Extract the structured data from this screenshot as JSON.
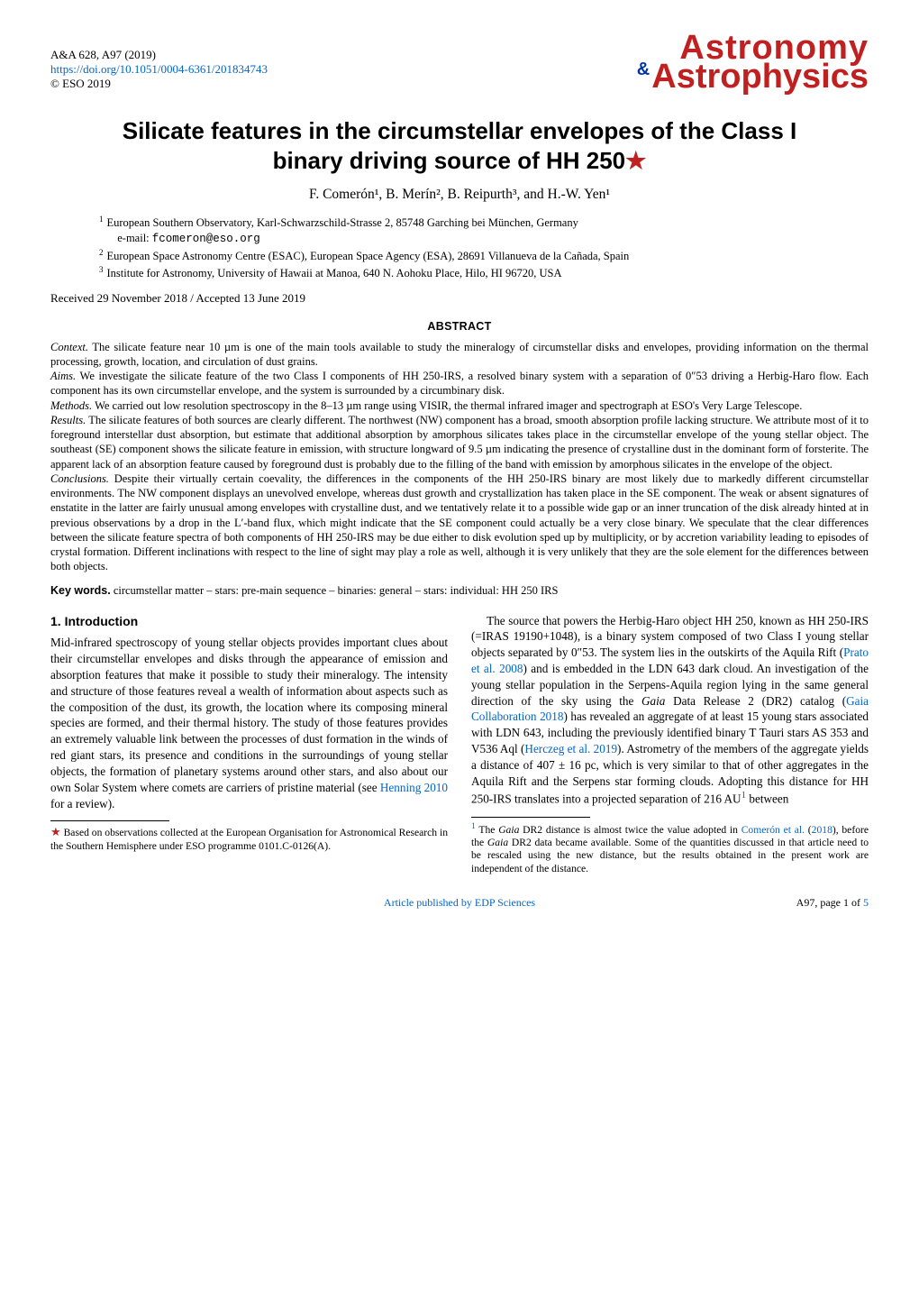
{
  "header": {
    "journal_ref": "A&A 628, A97 (2019)",
    "doi_text": "https://doi.org/10.1051/0004-6361/201834743",
    "copyright": "© ESO 2019",
    "logo_line1": "Astronomy",
    "logo_line2": "Astrophysics",
    "logo_amp": "&"
  },
  "title": {
    "line1": "Silicate features in the circumstellar envelopes of the Class I",
    "line2": "binary driving source of HH 250",
    "star": "★"
  },
  "authors": "F. Comerón¹, B. Merín², B. Reipurth³, and H.-W. Yen¹",
  "affiliations": [
    {
      "n": "1",
      "text": "European Southern Observatory, Karl-Schwarzschild-Strasse 2, 85748 Garching bei München, Germany",
      "email_label": "e-mail:",
      "email": "fcomeron@eso.org"
    },
    {
      "n": "2",
      "text": "European Space Astronomy Centre (ESAC), European Space Agency (ESA), 28691 Villanueva de la Cañada, Spain"
    },
    {
      "n": "3",
      "text": "Institute for Astronomy, University of Hawaii at Manoa, 640 N. Aohoku Place, Hilo, HI 96720, USA"
    }
  ],
  "dates": "Received 29 November 2018 / Accepted 13 June 2019",
  "abstract": {
    "heading": "ABSTRACT",
    "context_label": "Context.",
    "context": " The silicate feature near 10 µm is one of the main tools available to study the mineralogy of circumstellar disks and envelopes, providing information on the thermal processing, growth, location, and circulation of dust grains.",
    "aims_label": "Aims.",
    "aims": " We investigate the silicate feature of the two Class I components of HH 250-IRS, a resolved binary system with a separation of 0″53 driving a Herbig-Haro flow. Each component has its own circumstellar envelope, and the system is surrounded by a circumbinary disk.",
    "methods_label": "Methods.",
    "methods": " We carried out low resolution spectroscopy in the 8–13 µm range using VISIR, the thermal infrared imager and spectrograph at ESO's Very Large Telescope.",
    "results_label": "Results.",
    "results": " The silicate features of both sources are clearly different. The northwest (NW) component has a broad, smooth absorption profile lacking structure. We attribute most of it to foreground interstellar dust absorption, but estimate that additional absorption by amorphous silicates takes place in the circumstellar envelope of the young stellar object. The southeast (SE) component shows the silicate feature in emission, with structure longward of 9.5 µm indicating the presence of crystalline dust in the dominant form of forsterite. The apparent lack of an absorption feature caused by foreground dust is probably due to the filling of the band with emission by amorphous silicates in the envelope of the object.",
    "conclusions_label": "Conclusions.",
    "conclusions": " Despite their virtually certain coevality, the differences in the components of the HH 250-IRS binary are most likely due to markedly different circumstellar environments. The NW component displays an unevolved envelope, whereas dust growth and crystallization has taken place in the SE component. The weak or absent signatures of enstatite in the latter are fairly unusual among envelopes with crystalline dust, and we tentatively relate it to a possible wide gap or an inner truncation of the disk already hinted at in previous observations by a drop in the L′-band flux, which might indicate that the SE component could actually be a very close binary. We speculate that the clear differences between the silicate feature spectra of both components of HH 250-IRS may be due either to disk evolution sped up by multiplicity, or by accretion variability leading to episodes of crystal formation. Different inclinations with respect to the line of sight may play a role as well, although it is very unlikely that they are the sole element for the differences between both objects."
  },
  "keywords": {
    "label": "Key words.",
    "text": " circumstellar matter – stars: pre-main sequence – binaries: general – stars: individual: HH 250 IRS"
  },
  "section1": {
    "heading": "1. Introduction",
    "para1a": "Mid-infrared spectroscopy of young stellar objects provides important clues about their circumstellar envelopes and disks through the appearance of emission and absorption features that make it possible to study their mineralogy. The intensity and structure of those features reveal a wealth of information about aspects such as the composition of the dust, its growth, the location where its composing mineral species are formed, and their thermal history. The study of those features provides an extremely valuable link between the processes of dust formation in the winds of red giant stars, its presence and conditions in the surroundings of young stellar objects, the formation of planetary systems around other stars, and also about our own Solar System where comets are carriers of pristine material (see ",
    "para1_link1": "Henning 2010",
    "para1b": " for a review).",
    "para2a": "The source that powers the Herbig-Haro object HH 250, known as HH 250-IRS (=IRAS 19190+1048), is a binary system composed of two Class I young stellar objects separated by 0″53. The system lies in the outskirts of the Aquila Rift (",
    "para2_link1": "Prato et al. 2008",
    "para2b": ") and is embedded in the LDN 643 dark cloud. An investigation of the young stellar population in the Serpens-Aquila region lying in the same general direction of the sky using the ",
    "para2_gaia": "Gaia",
    "para2c": " Data Release 2 (DR2) catalog (",
    "para2_link2": "Gaia Collaboration 2018",
    "para2d": ") has revealed an aggregate of at least 15 young stars associated with LDN 643, including the previously identified binary T Tauri stars AS 353 and V536 Aql (",
    "para2_link3": "Herczeg et al. 2019",
    "para2e": "). Astrometry of the members of the aggregate yields a distance of 407 ± 16 pc, which is very similar to that of other aggregates in the Aquila Rift and the Serpens star forming clouds. Adopting this distance for HH 250-IRS translates into a projected separation of 216 AU",
    "para2_sup": "1",
    "para2f": " between"
  },
  "footnotes": {
    "star_mark": "★",
    "star_text": " Based on observations collected at the European Organisation for Astronomical Research in the Southern Hemisphere under ESO programme 0101.C-0126(A).",
    "n1_mark": "1",
    "n1a": " The ",
    "n1_gaia1": "Gaia",
    "n1b": " DR2 distance is almost twice the value adopted in ",
    "n1_link": "Comerón et al.",
    "n1c": " (",
    "n1_year": "2018",
    "n1d": "), before the ",
    "n1_gaia2": "Gaia",
    "n1e": " DR2 data became available. Some of the quantities discussed in that article need to be rescaled using the new distance, but the results obtained in the present work are independent of the distance."
  },
  "footer": {
    "publisher": "Article published by EDP Sciences",
    "page": "A97, page 1 of ",
    "page_total": "5"
  }
}
